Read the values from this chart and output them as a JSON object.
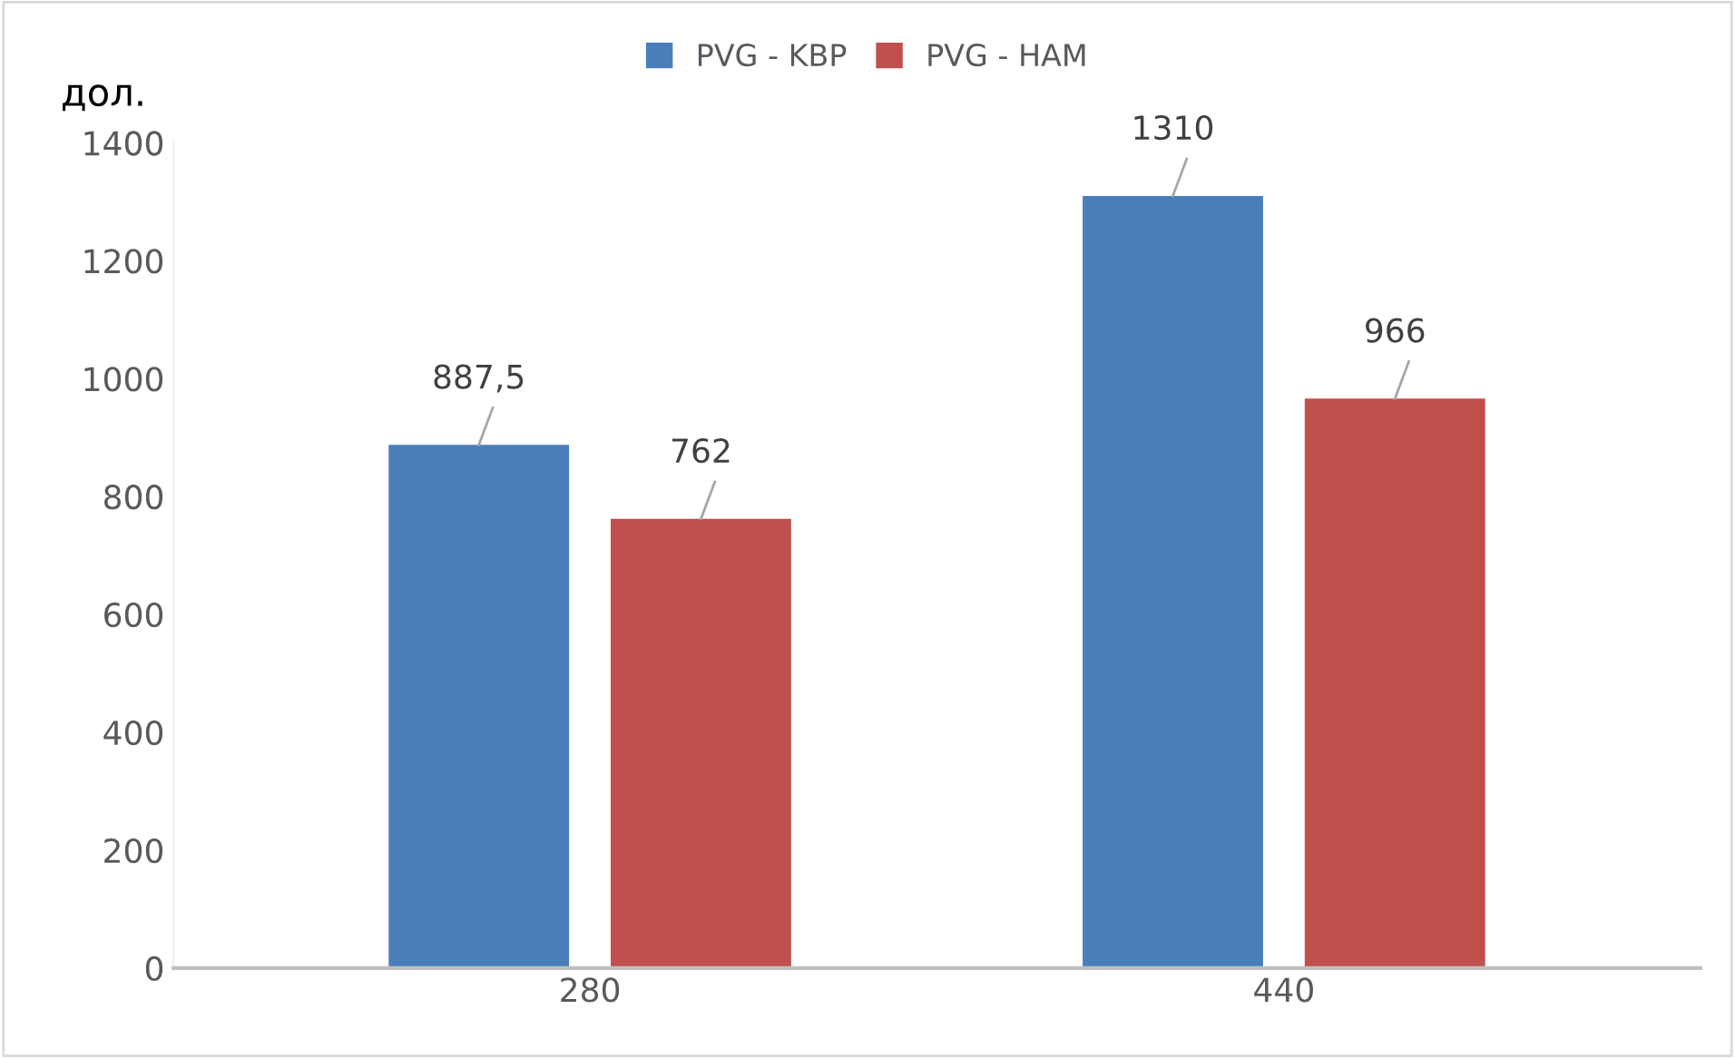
{
  "chart_data": {
    "type": "bar",
    "ylabel": "дол.",
    "categories": [
      "280",
      "440"
    ],
    "series": [
      {
        "name": "PVG - KBP",
        "color": "#4a7ebb",
        "values": [
          887.5,
          1310
        ],
        "value_labels": [
          "887,5",
          "1310"
        ]
      },
      {
        "name": "PVG - HAM",
        "color": "#c0504d",
        "values": [
          762,
          966
        ],
        "value_labels": [
          "762",
          "966"
        ]
      }
    ],
    "ylim": [
      0,
      1400
    ],
    "yticks": [
      0,
      200,
      400,
      600,
      800,
      1000,
      1200,
      1400
    ],
    "grid": false,
    "legend": "top"
  }
}
